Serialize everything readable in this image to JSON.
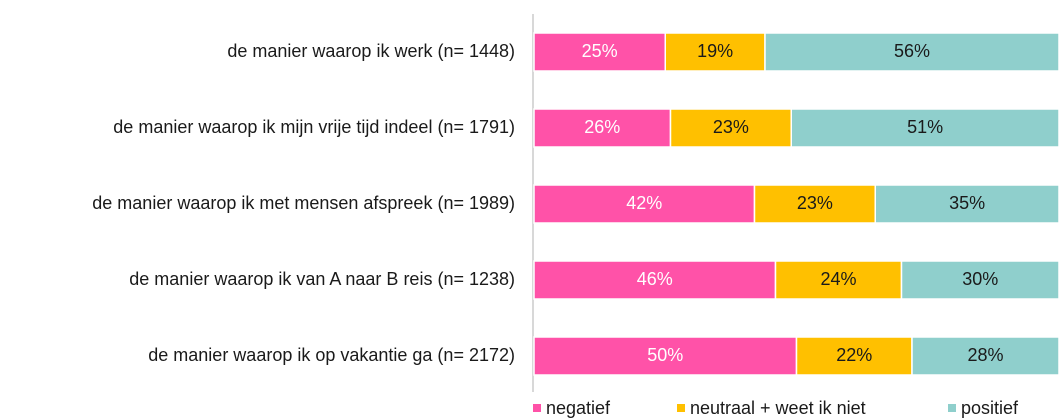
{
  "chart_data": {
    "type": "bar",
    "orientation": "horizontal",
    "stacked": true,
    "categories": [
      "de manier waarop ik werk (n= 1448)",
      "de manier waarop ik mijn vrije tijd indeel (n= 1791)",
      "de manier waarop ik met mensen afspreek (n= 1989)",
      "de manier waarop ik van A naar B reis (n= 1238)",
      "de manier waarop ik op vakantie ga (n= 2172)"
    ],
    "series": [
      {
        "name": "negatief",
        "color": "#ff52a8",
        "values": [
          25,
          26,
          42,
          46,
          50
        ],
        "value_labels": [
          "25%",
          "26%",
          "42%",
          "46%",
          "50%"
        ]
      },
      {
        "name": "neutraal + weet ik niet",
        "color": "#ffc000",
        "values": [
          19,
          23,
          23,
          24,
          22
        ],
        "value_labels": [
          "19%",
          "23%",
          "23%",
          "24%",
          "22%"
        ]
      },
      {
        "name": "positief",
        "color": "#8fcfcc",
        "values": [
          56,
          51,
          35,
          30,
          28
        ],
        "value_labels": [
          "56%",
          "51%",
          "35%",
          "30%",
          "28%"
        ]
      }
    ],
    "xlim": [
      0,
      100
    ],
    "legend": "bottom"
  }
}
